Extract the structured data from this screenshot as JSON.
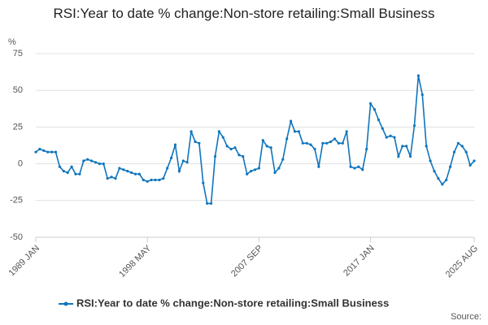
{
  "chart_data": {
    "type": "line",
    "title": "RSI:Year to date % change:Non-store retailing:Small Business",
    "y_label": "%",
    "source": "Source:",
    "categories": [
      "1989 JAN",
      null,
      null,
      null,
      null,
      null,
      null,
      null,
      null,
      null,
      null,
      null,
      null,
      null,
      null,
      null,
      null,
      null,
      null,
      null,
      null,
      null,
      null,
      null,
      null,
      null,
      null,
      null,
      "1998 MAY",
      null,
      null,
      null,
      null,
      null,
      null,
      null,
      null,
      null,
      null,
      null,
      null,
      null,
      null,
      null,
      null,
      null,
      null,
      null,
      null,
      null,
      null,
      null,
      null,
      null,
      null,
      null,
      "2007 SEP",
      null,
      null,
      null,
      null,
      null,
      null,
      null,
      null,
      null,
      null,
      null,
      null,
      null,
      null,
      null,
      null,
      null,
      null,
      null,
      null,
      null,
      null,
      null,
      null,
      null,
      null,
      null,
      "2017 JAN",
      null,
      null,
      null,
      null,
      null,
      null,
      null,
      null,
      null,
      null,
      null,
      null,
      null,
      null,
      null,
      null,
      null,
      null,
      null,
      null,
      null,
      null,
      null,
      null,
      null,
      "2025 AUG"
    ],
    "series": [
      {
        "name": "RSI:Year to date % change:Non-store retailing:Small Business",
        "color": "#0f75bc",
        "values": [
          8,
          10,
          9,
          8,
          8,
          8,
          -2,
          -5,
          -6,
          -2,
          -7,
          -7,
          2,
          3,
          2,
          1,
          0,
          0,
          -10,
          -9,
          -10,
          -3,
          -4,
          -5,
          -6,
          -7,
          -7,
          -11,
          -12,
          -11,
          -11,
          -11,
          -10,
          -3,
          4,
          13,
          -5,
          2,
          1,
          22,
          15,
          14,
          -13,
          -27,
          -27,
          5,
          22,
          18,
          12,
          10,
          11,
          6,
          5,
          -7,
          -5,
          -4,
          -3,
          16,
          12,
          11,
          -6,
          -3,
          3,
          17,
          29,
          22,
          22,
          14,
          14,
          13,
          10,
          -2,
          14,
          14,
          15,
          17,
          14,
          14,
          22,
          -2,
          -3,
          -2,
          -4,
          10,
          41,
          37,
          30,
          24,
          18,
          19,
          18,
          5,
          12,
          12,
          5,
          26,
          60,
          47,
          12,
          2,
          -5,
          -10,
          -14,
          -11,
          -2,
          8,
          14,
          12,
          8,
          -1,
          2
        ]
      }
    ],
    "ylim": [
      -50,
      75
    ],
    "yticks": [
      -50,
      -25,
      0,
      25,
      50,
      75
    ],
    "grid": true
  }
}
